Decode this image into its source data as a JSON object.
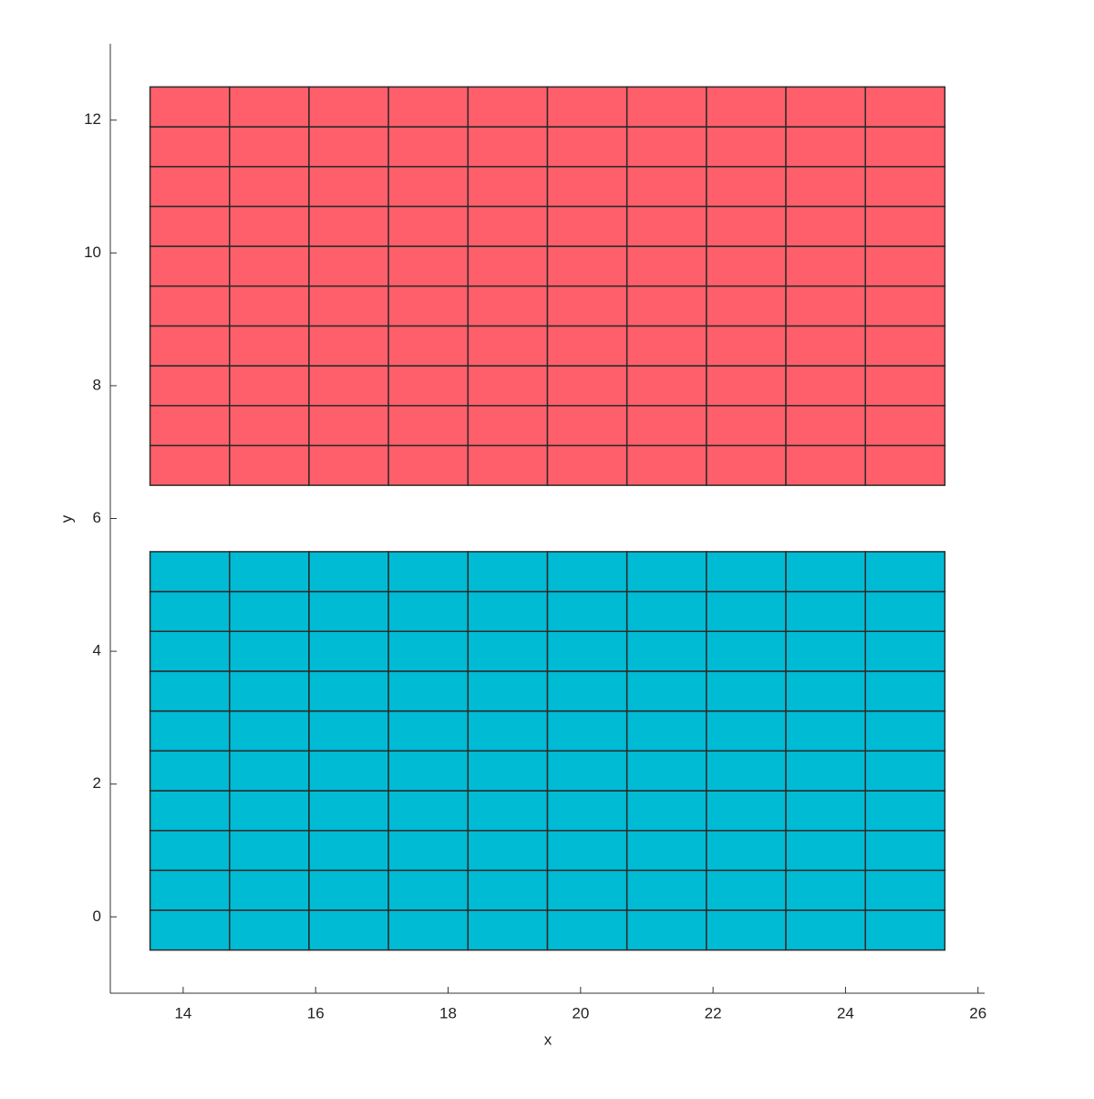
{
  "chart_data": {
    "type": "mesh",
    "xlabel": "x",
    "ylabel": "y",
    "xlim": [
      12.9,
      26.1
    ],
    "ylim": [
      -1.15,
      13.15
    ],
    "xticks": [
      14,
      16,
      18,
      20,
      22,
      24,
      26
    ],
    "yticks": [
      0,
      2,
      4,
      6,
      8,
      10,
      12
    ],
    "grid": false,
    "edge_color": "#2b2b2b",
    "series": [
      {
        "color": "#ff5f6a",
        "x_edges": [
          13.5,
          14.7,
          15.9,
          17.1,
          18.3,
          19.5,
          20.7,
          21.9,
          23.1,
          24.3,
          25.5
        ],
        "y_edges": [
          6.5,
          7.1,
          7.7,
          8.3,
          8.9,
          9.5,
          10.1,
          10.7,
          11.3,
          11.9,
          12.5
        ]
      },
      {
        "color": "#00bbd4",
        "x_edges": [
          13.5,
          14.7,
          15.9,
          17.1,
          18.3,
          19.5,
          20.7,
          21.9,
          23.1,
          24.3,
          25.5
        ],
        "y_edges": [
          -0.5,
          0.1,
          0.7,
          1.3,
          1.9,
          2.5,
          3.1,
          3.7,
          4.3,
          4.9,
          5.5
        ]
      }
    ]
  }
}
